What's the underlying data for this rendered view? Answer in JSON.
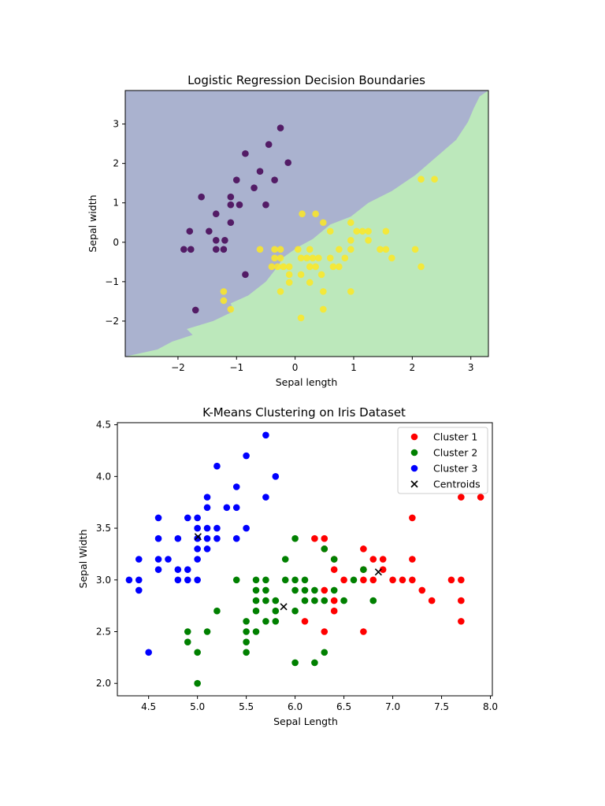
{
  "chart_data": [
    {
      "type": "scatter",
      "title": "Logistic Regression Decision Boundaries",
      "xlabel": "Sepal length",
      "ylabel": "Sepal width",
      "xlim": [
        -2.9,
        3.3
      ],
      "ylim": [
        -2.9,
        3.85
      ],
      "xticks": [
        -2,
        -1,
        0,
        1,
        2,
        3
      ],
      "yticks": [
        -2,
        -1,
        0,
        1,
        2,
        3
      ],
      "grid": false,
      "colors": {
        "region_class0": "#aab2cf",
        "region_class1": "#bce8bb",
        "class0": "#440154",
        "class1": "#fde725"
      },
      "boundary": [
        [
          -2.9,
          -3.0
        ],
        [
          -2.35,
          -2.72
        ],
        [
          -2.1,
          -2.52
        ],
        [
          -1.75,
          -2.35
        ],
        [
          -1.85,
          -2.2
        ],
        [
          -1.4,
          -2.0
        ],
        [
          -1.05,
          -1.75
        ],
        [
          -1.1,
          -1.55
        ],
        [
          -0.8,
          -1.35
        ],
        [
          -0.5,
          -1.0
        ],
        [
          -0.3,
          -0.62
        ],
        [
          -0.2,
          -0.38
        ],
        [
          0.05,
          -0.12
        ],
        [
          0.3,
          0.08
        ],
        [
          0.6,
          0.45
        ],
        [
          0.95,
          0.65
        ],
        [
          1.25,
          1.0
        ],
        [
          1.65,
          1.3
        ],
        [
          2.05,
          1.7
        ],
        [
          2.4,
          2.15
        ],
        [
          2.75,
          2.6
        ],
        [
          2.95,
          3.05
        ],
        [
          3.05,
          3.4
        ],
        [
          3.15,
          3.7
        ],
        [
          3.3,
          3.85
        ]
      ],
      "series": [
        {
          "class": 0,
          "points": [
            [
              -0.25,
              2.9
            ],
            [
              -0.45,
              2.48
            ],
            [
              -0.85,
              2.25
            ],
            [
              -0.12,
              2.02
            ],
            [
              -0.6,
              1.8
            ],
            [
              -1.0,
              1.58
            ],
            [
              -0.35,
              1.58
            ],
            [
              -0.7,
              1.38
            ],
            [
              -1.6,
              1.15
            ],
            [
              -1.1,
              1.15
            ],
            [
              -1.1,
              0.95
            ],
            [
              -0.95,
              0.95
            ],
            [
              -0.5,
              0.95
            ],
            [
              -1.35,
              0.72
            ],
            [
              -1.1,
              0.5
            ],
            [
              -1.8,
              0.28
            ],
            [
              -1.47,
              0.28
            ],
            [
              -1.35,
              0.05
            ],
            [
              -1.2,
              0.05
            ],
            [
              -1.9,
              -0.18
            ],
            [
              -1.78,
              -0.18
            ],
            [
              -1.35,
              -0.18
            ],
            [
              -1.22,
              -0.18
            ],
            [
              -0.85,
              -0.82
            ],
            [
              -1.7,
              -1.72
            ]
          ]
        },
        {
          "class": 1,
          "points": [
            [
              0.12,
              0.72
            ],
            [
              0.35,
              0.72
            ],
            [
              0.48,
              0.5
            ],
            [
              0.95,
              0.5
            ],
            [
              0.6,
              0.28
            ],
            [
              1.05,
              0.28
            ],
            [
              1.15,
              0.28
            ],
            [
              1.25,
              0.28
            ],
            [
              1.55,
              0.28
            ],
            [
              0.95,
              0.05
            ],
            [
              1.25,
              0.05
            ],
            [
              0.05,
              -0.18
            ],
            [
              0.25,
              -0.18
            ],
            [
              0.75,
              -0.18
            ],
            [
              0.95,
              -0.18
            ],
            [
              1.45,
              -0.18
            ],
            [
              1.55,
              -0.18
            ],
            [
              2.05,
              -0.18
            ],
            [
              -0.6,
              -0.18
            ],
            [
              -0.35,
              -0.18
            ],
            [
              -0.25,
              -0.18
            ],
            [
              -0.35,
              -0.4
            ],
            [
              -0.25,
              -0.4
            ],
            [
              0.1,
              -0.4
            ],
            [
              0.2,
              -0.4
            ],
            [
              0.3,
              -0.4
            ],
            [
              0.4,
              -0.4
            ],
            [
              0.6,
              -0.4
            ],
            [
              0.85,
              -0.4
            ],
            [
              1.65,
              -0.4
            ],
            [
              -0.4,
              -0.62
            ],
            [
              -0.3,
              -0.62
            ],
            [
              -0.2,
              -0.62
            ],
            [
              -0.1,
              -0.62
            ],
            [
              0.25,
              -0.62
            ],
            [
              0.35,
              -0.62
            ],
            [
              0.65,
              -0.62
            ],
            [
              0.75,
              -0.62
            ],
            [
              2.15,
              -0.62
            ],
            [
              -0.1,
              -0.82
            ],
            [
              0.1,
              -0.82
            ],
            [
              0.45,
              -0.82
            ],
            [
              -0.1,
              -1.02
            ],
            [
              0.25,
              -1.02
            ],
            [
              -0.25,
              -1.25
            ],
            [
              0.48,
              -1.25
            ],
            [
              0.95,
              -1.25
            ],
            [
              -1.22,
              -1.25
            ],
            [
              -1.22,
              -1.48
            ],
            [
              -1.1,
              -1.7
            ],
            [
              0.48,
              -1.7
            ],
            [
              0.1,
              -1.92
            ],
            [
              2.15,
              1.6
            ],
            [
              2.38,
              1.6
            ]
          ]
        }
      ]
    },
    {
      "type": "scatter",
      "title": "K-Means Clustering on Iris Dataset",
      "xlabel": "Sepal Length",
      "ylabel": "Sepal Width",
      "xlim": [
        4.18,
        8.02
      ],
      "ylim": [
        1.88,
        4.52
      ],
      "xticks": [
        "4.5",
        "5.0",
        "5.5",
        "6.0",
        "6.5",
        "7.0",
        "7.5",
        "8.0"
      ],
      "yticks": [
        "2.0",
        "2.5",
        "3.0",
        "3.5",
        "4.0",
        "4.5"
      ],
      "grid": false,
      "legend_position": "top-right",
      "series": [
        {
          "name": "Cluster 1",
          "color": "#ff0000",
          "points": [
            [
              7.7,
              3.8
            ],
            [
              7.9,
              3.8
            ],
            [
              7.2,
              3.6
            ],
            [
              6.2,
              3.4
            ],
            [
              6.3,
              3.4
            ],
            [
              6.7,
              3.3
            ],
            [
              6.3,
              3.3
            ],
            [
              6.4,
              3.2
            ],
            [
              6.8,
              3.2
            ],
            [
              6.9,
              3.2
            ],
            [
              7.2,
              3.2
            ],
            [
              6.4,
              3.1
            ],
            [
              6.7,
              3.1
            ],
            [
              6.9,
              3.1
            ],
            [
              6.5,
              3.0
            ],
            [
              6.7,
              3.0
            ],
            [
              7.0,
              3.0
            ],
            [
              7.1,
              3.0
            ],
            [
              7.2,
              3.0
            ],
            [
              7.6,
              3.0
            ],
            [
              7.7,
              3.0
            ],
            [
              6.8,
              3.0
            ],
            [
              6.3,
              2.9
            ],
            [
              7.3,
              2.9
            ],
            [
              6.4,
              2.8
            ],
            [
              7.4,
              2.8
            ],
            [
              7.7,
              2.8
            ],
            [
              6.4,
              2.7
            ],
            [
              6.1,
              2.6
            ],
            [
              7.7,
              2.6
            ],
            [
              6.3,
              2.5
            ],
            [
              6.7,
              2.5
            ]
          ]
        },
        {
          "name": "Cluster 2",
          "color": "#008000",
          "points": [
            [
              6.0,
              3.4
            ],
            [
              6.3,
              3.3
            ],
            [
              5.9,
              3.2
            ],
            [
              6.4,
              3.2
            ],
            [
              6.7,
              3.1
            ],
            [
              5.4,
              3.0
            ],
            [
              5.6,
              3.0
            ],
            [
              5.7,
              3.0
            ],
            [
              5.9,
              3.0
            ],
            [
              6.0,
              3.0
            ],
            [
              6.1,
              3.0
            ],
            [
              6.6,
              3.0
            ],
            [
              5.6,
              2.9
            ],
            [
              5.7,
              2.9
            ],
            [
              6.0,
              2.9
            ],
            [
              6.1,
              2.9
            ],
            [
              6.2,
              2.9
            ],
            [
              6.4,
              2.9
            ],
            [
              5.6,
              2.8
            ],
            [
              5.7,
              2.8
            ],
            [
              5.8,
              2.8
            ],
            [
              6.1,
              2.8
            ],
            [
              6.2,
              2.8
            ],
            [
              6.3,
              2.8
            ],
            [
              6.5,
              2.8
            ],
            [
              6.8,
              2.8
            ],
            [
              5.2,
              2.7
            ],
            [
              5.6,
              2.7
            ],
            [
              5.8,
              2.7
            ],
            [
              6.0,
              2.7
            ],
            [
              5.5,
              2.6
            ],
            [
              5.7,
              2.6
            ],
            [
              5.8,
              2.6
            ],
            [
              4.9,
              2.5
            ],
            [
              5.1,
              2.5
            ],
            [
              5.5,
              2.5
            ],
            [
              5.6,
              2.5
            ],
            [
              4.9,
              2.4
            ],
            [
              5.5,
              2.4
            ],
            [
              5.0,
              2.3
            ],
            [
              5.5,
              2.3
            ],
            [
              6.3,
              2.3
            ],
            [
              6.0,
              2.2
            ],
            [
              6.2,
              2.2
            ],
            [
              5.0,
              2.0
            ]
          ]
        },
        {
          "name": "Cluster 3",
          "color": "#0000ff",
          "points": [
            [
              5.7,
              4.4
            ],
            [
              5.5,
              4.2
            ],
            [
              5.2,
              4.1
            ],
            [
              5.8,
              4.0
            ],
            [
              5.4,
              3.9
            ],
            [
              5.1,
              3.8
            ],
            [
              5.7,
              3.8
            ],
            [
              5.1,
              3.7
            ],
            [
              5.3,
              3.7
            ],
            [
              5.4,
              3.7
            ],
            [
              4.6,
              3.6
            ],
            [
              4.9,
              3.6
            ],
            [
              5.0,
              3.6
            ],
            [
              5.0,
              3.5
            ],
            [
              5.1,
              3.5
            ],
            [
              5.2,
              3.5
            ],
            [
              5.5,
              3.5
            ],
            [
              4.6,
              3.4
            ],
            [
              4.8,
              3.4
            ],
            [
              5.0,
              3.4
            ],
            [
              5.1,
              3.4
            ],
            [
              5.2,
              3.4
            ],
            [
              5.4,
              3.4
            ],
            [
              5.0,
              3.3
            ],
            [
              5.1,
              3.3
            ],
            [
              4.4,
              3.2
            ],
            [
              4.6,
              3.2
            ],
            [
              4.7,
              3.2
            ],
            [
              5.0,
              3.2
            ],
            [
              4.6,
              3.1
            ],
            [
              4.8,
              3.1
            ],
            [
              4.9,
              3.1
            ],
            [
              4.3,
              3.0
            ],
            [
              4.4,
              3.0
            ],
            [
              4.8,
              3.0
            ],
            [
              4.9,
              3.0
            ],
            [
              5.0,
              3.0
            ],
            [
              4.4,
              2.9
            ],
            [
              4.5,
              2.3
            ]
          ]
        },
        {
          "name": "Centroids",
          "color": "#000000",
          "marker": "x",
          "points": [
            [
              5.006,
              3.418
            ],
            [
              5.883,
              2.741
            ],
            [
              6.853,
              3.077
            ]
          ]
        }
      ]
    }
  ]
}
